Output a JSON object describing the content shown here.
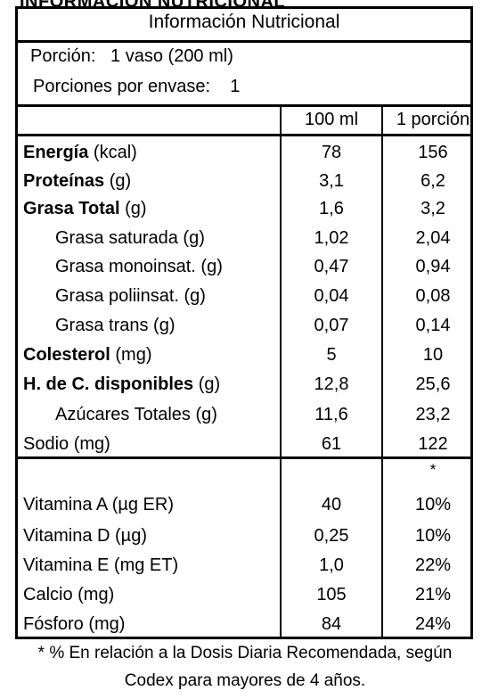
{
  "header_cut": "INFORMACIÓN NUTRICIONAL",
  "title": "Información Nutricional",
  "serving": {
    "portion_label": "Porción:",
    "portion_value": "1 vaso (200 ml)",
    "per_pack_label": "Porciones por envase:",
    "per_pack_value": "1"
  },
  "columns": {
    "c1": "100 ml",
    "c2": "1 porción"
  },
  "nutrients": [
    {
      "bold": "Energía",
      "unit": " (kcal)",
      "v1": "78",
      "v2": "156"
    },
    {
      "bold": "Proteínas",
      "unit": " (g)",
      "v1": "3,1",
      "v2": "6,2"
    },
    {
      "bold": "Grasa Total",
      "unit": " (g)",
      "v1": "1,6",
      "v2": "3,2"
    },
    {
      "bold": "",
      "unit": "Grasa saturada (g)",
      "v1": "1,02",
      "v2": "2,04"
    },
    {
      "bold": "",
      "unit": "Grasa monoinsat. (g)",
      "v1": "0,47",
      "v2": "0,94"
    },
    {
      "bold": "",
      "unit": "Grasa poliinsat. (g)",
      "v1": "0,04",
      "v2": "0,08"
    },
    {
      "bold": "",
      "unit": "Grasa trans (g)",
      "v1": "0,07",
      "v2": "0,14"
    },
    {
      "bold": "Colesterol",
      "unit": " (mg)",
      "v1": "5",
      "v2": "10"
    },
    {
      "bold": "H. de C. disponibles",
      "unit": " (g)",
      "v1": "12,8",
      "v2": "25,6"
    },
    {
      "bold": "",
      "unit": "Azúcares Totales (g)",
      "v1": "11,6",
      "v2": "23,2"
    },
    {
      "bold": "",
      "unit": "Sodio (mg)",
      "v1": "61",
      "v2": "122"
    }
  ],
  "asterisk": "*",
  "vitamins": [
    {
      "label": "Vitamina A (µg ER)",
      "v1": "40",
      "v2": "10%"
    },
    {
      "label": "Vitamina D (µg)",
      "v1": "0,25",
      "v2": "10%"
    },
    {
      "label": "Vitamina E (mg ET)",
      "v1": "1,0",
      "v2": "22%"
    },
    {
      "label": "Calcio (mg)",
      "v1": "105",
      "v2": "21%"
    },
    {
      "label": "Fósforo (mg)",
      "v1": "84",
      "v2": "24%"
    }
  ],
  "footnote": {
    "line1": "* % En relación a la Dosis Diaria Recomendada, según",
    "line2": "Codex para mayores de 4 años."
  }
}
